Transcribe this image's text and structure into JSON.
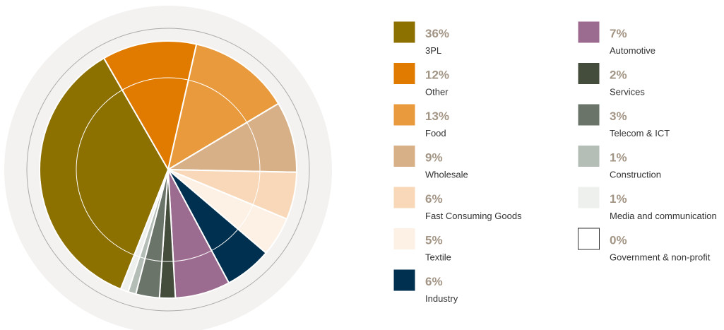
{
  "chart_data": {
    "type": "pie",
    "categories": [
      "3PL",
      "Other",
      "Food",
      "Wholesale",
      "Fast Consuming Goods",
      "Textile",
      "Industry",
      "Automotive",
      "Services",
      "Telecom & ICT",
      "Construction",
      "Media and communication",
      "Government & non-profit"
    ],
    "values": [
      36,
      12,
      13,
      9,
      6,
      5,
      6,
      7,
      2,
      3,
      1,
      1,
      0
    ],
    "value_labels": [
      "36%",
      "12%",
      "13%",
      "9%",
      "6%",
      "5%",
      "6%",
      "7%",
      "2%",
      "3%",
      "1%",
      "1%",
      "0%"
    ],
    "colors": [
      "#8c7000",
      "#e07b00",
      "#e89a3c",
      "#d8b088",
      "#f8d8b8",
      "#fdf1e6",
      "#003050",
      "#9c6c90",
      "#444c3c",
      "#6a7468",
      "#b4beb6",
      "#eef0ee",
      "#ffffff"
    ]
  }
}
